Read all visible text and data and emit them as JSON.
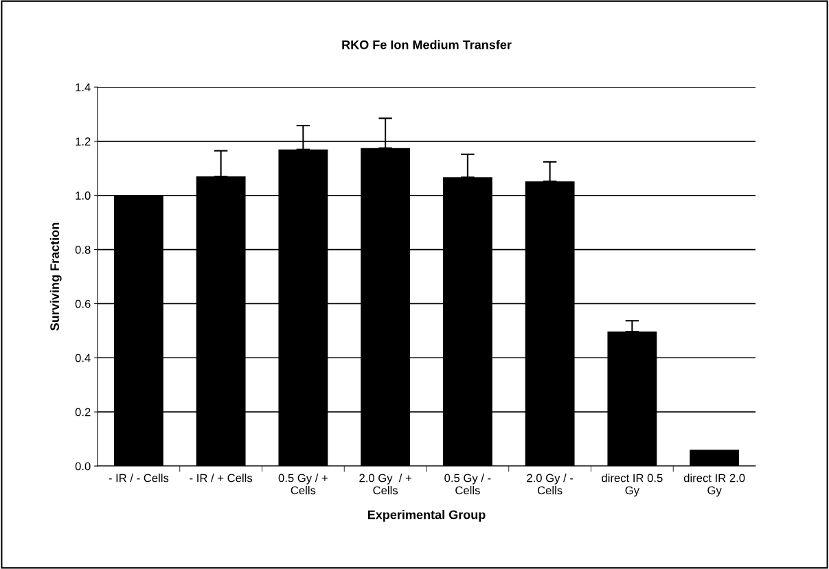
{
  "chart_data": {
    "type": "bar",
    "title": "RKO Fe Ion Medium Transfer",
    "xlabel": "Experimental Group",
    "ylabel": "Surviving Fraction",
    "categories": [
      "- IR / - Cells",
      "- IR / + Cells",
      "0.5 Gy / +\nCells",
      "2.0 Gy  / +\nCells",
      "0.5 Gy / -\nCells",
      "2.0 Gy / -\nCells",
      "direct IR 0.5\nGy",
      "direct IR 2.0\nGy"
    ],
    "values": [
      1.0,
      1.07,
      1.17,
      1.175,
      1.067,
      1.052,
      0.497,
      0.06
    ],
    "errors": [
      null,
      0.095,
      0.088,
      0.11,
      0.085,
      0.072,
      0.04,
      null
    ],
    "color": "#000000",
    "ylim": [
      0,
      1.4
    ],
    "yticks": [
      {
        "value": 0,
        "label": "0.0"
      },
      0.2,
      0.4,
      0.6,
      0.8,
      {
        "value": 1,
        "label": "1.0"
      },
      1.2,
      1.4
    ],
    "grid": "y",
    "legend": false
  }
}
